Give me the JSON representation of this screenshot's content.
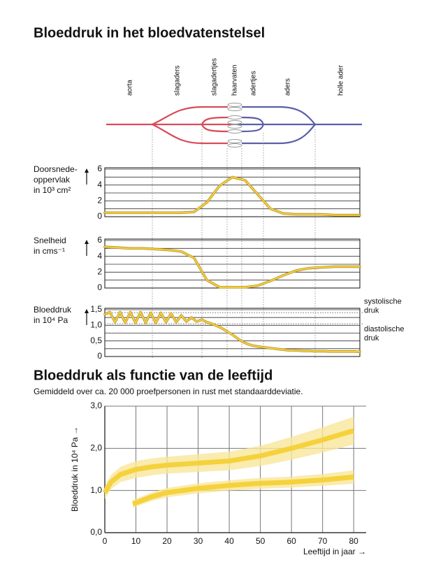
{
  "title": "Bloeddruk in het bloedvatenstelsel",
  "vessels": [
    "aorta",
    "slagaders",
    "slagadertjes",
    "haarvaten",
    "adertjes",
    "aders",
    "holle ader"
  ],
  "chart_data": [
    {
      "type": "panel",
      "ylabel": [
        "Doorsnede-",
        "oppervlak",
        "in 10³ cm²"
      ],
      "ylim": [
        0,
        6
      ],
      "yticks": [
        0,
        2,
        4,
        6
      ],
      "grid_lines": [
        0,
        1,
        2,
        3,
        4,
        5,
        6
      ],
      "color": "#f5d23c",
      "values": [
        0.5,
        0.5,
        0.5,
        0.5,
        0.5,
        0.5,
        0.5,
        0.6,
        1.8,
        3.9,
        5.0,
        4.6,
        2.8,
        1.0,
        0.4,
        0.3,
        0.3,
        0.3,
        0.2,
        0.2,
        0.2
      ]
    },
    {
      "type": "panel",
      "ylabel": [
        "Snelheid",
        "in cms⁻¹"
      ],
      "ylim": [
        0,
        6
      ],
      "yticks": [
        0,
        2,
        4,
        6
      ],
      "grid_lines": [
        0,
        1,
        2,
        3,
        4,
        5,
        6
      ],
      "color": "#f5d23c",
      "values": [
        5.2,
        5.1,
        5.0,
        5.0,
        4.9,
        4.8,
        4.6,
        3.8,
        1.0,
        0.1,
        0.1,
        0.1,
        0.3,
        0.9,
        1.6,
        2.2,
        2.5,
        2.6,
        2.7,
        2.7,
        2.7
      ]
    },
    {
      "type": "panel",
      "ylabel": [
        "Bloeddruk",
        "in 10⁴ Pa"
      ],
      "ylim": [
        0,
        1.5
      ],
      "yticks": [
        0,
        {
          "value": 0.5,
          "label": "0,5"
        },
        {
          "value": 1.0,
          "label": "1,0"
        },
        {
          "value": 1.5,
          "label": "1,5"
        }
      ],
      "grid_lines": [
        0,
        0.25,
        0.5,
        0.75,
        1.0,
        1.25,
        1.5
      ],
      "reference_lines": [
        {
          "value": 1.4,
          "label": [
            "systolische",
            "druk"
          ]
        },
        {
          "value": 1.05,
          "label": [
            "diastolische",
            "druk"
          ]
        }
      ],
      "color": "#f5d23c",
      "values": [
        1.35,
        1.42,
        1.1,
        1.42,
        1.08,
        1.42,
        1.08,
        1.42,
        1.08,
        1.4,
        1.08,
        1.4,
        1.1,
        1.38,
        1.1,
        1.32,
        1.12,
        1.25,
        1.12,
        1.18,
        1.1,
        1.05,
        0.98,
        0.9,
        0.8,
        0.7,
        0.58,
        0.47,
        0.4,
        0.35,
        0.32,
        0.3,
        0.28,
        0.26,
        0.24,
        0.22,
        0.2,
        0.2,
        0.19,
        0.18,
        0.18,
        0.17,
        0.17,
        0.17,
        0.16,
        0.16,
        0.16,
        0.16,
        0.16,
        0.16,
        0.15
      ]
    },
    {
      "type": "line",
      "title": "Bloeddruk als functie van de leeftijd",
      "subtitle": "Gemiddeld over ca. 20 000 proefpersonen in rust met standaarddeviatie.",
      "xlabel": "Leeftijd in jaar →",
      "ylabel": "Bloeddruk in 10⁴ Pa →",
      "xlim": [
        0,
        84
      ],
      "xticks": [
        0,
        10,
        20,
        30,
        40,
        50,
        60,
        70,
        80
      ],
      "ylim": [
        0,
        3
      ],
      "yticks": [
        {
          "value": 0,
          "label": "0,0"
        },
        {
          "value": 1,
          "label": "1,0"
        },
        {
          "value": 2,
          "label": "2,0"
        },
        {
          "value": 3,
          "label": "3,0"
        }
      ],
      "grid": true,
      "series": [
        {
          "color": "#f5d23c",
          "band_color": "#f9e69a",
          "x": [
            0,
            2,
            5,
            10,
            15,
            20,
            30,
            40,
            50,
            60,
            70,
            80
          ],
          "values": [
            0.95,
            1.2,
            1.38,
            1.5,
            1.56,
            1.6,
            1.65,
            1.7,
            1.82,
            2.0,
            2.2,
            2.42
          ],
          "sd": [
            0.15,
            0.17,
            0.18,
            0.2,
            0.2,
            0.2,
            0.21,
            0.22,
            0.24,
            0.27,
            0.3,
            0.33
          ]
        },
        {
          "color": "#f5d23c",
          "band_color": "#f9e69a",
          "x": [
            9,
            15,
            20,
            30,
            40,
            50,
            60,
            70,
            80
          ],
          "values": [
            0.68,
            0.85,
            0.95,
            1.05,
            1.12,
            1.17,
            1.2,
            1.25,
            1.32
          ],
          "sd": [
            0.09,
            0.1,
            0.11,
            0.12,
            0.12,
            0.13,
            0.13,
            0.14,
            0.16
          ]
        }
      ]
    }
  ]
}
